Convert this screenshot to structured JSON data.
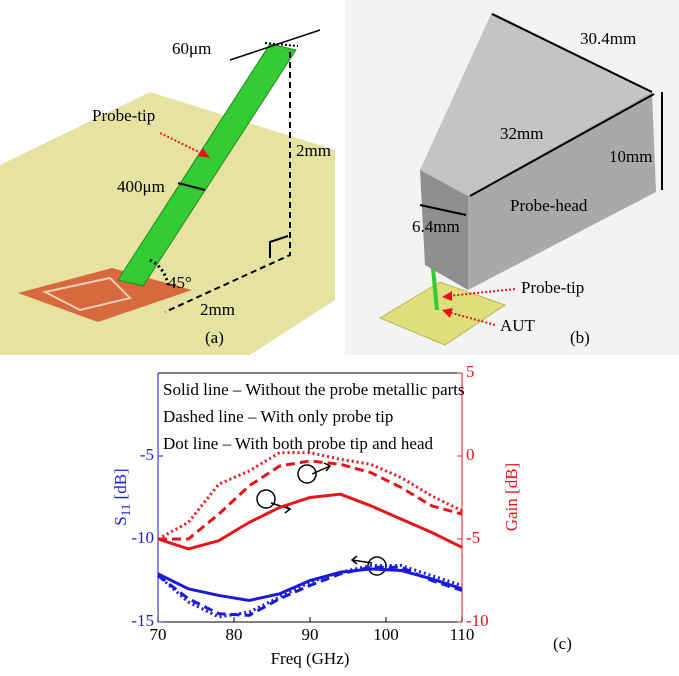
{
  "figure_a": {
    "labels": [
      "60μm",
      "Probe-tip",
      "2mm",
      "400μm",
      "45°",
      "2mm"
    ],
    "panel": "(a)"
  },
  "figure_b": {
    "labels": [
      "30.4mm",
      "32mm",
      "10mm",
      "Probe-head",
      "6.4mm",
      "Probe-tip",
      "AUT"
    ],
    "panel": "(b)"
  },
  "chart_data": {
    "type": "line",
    "panel": "(c)",
    "annotations": [
      "Solid line – Without the probe metallic parts",
      "Dashed line – With only probe tip",
      "Dot line – With both probe tip and head"
    ],
    "xlabel": "Freq (GHz)",
    "ylabel": [
      "S",
      "11",
      " [dB]"
    ],
    "y2label": "Gain [dB]",
    "x": [
      70,
      74,
      78,
      82,
      86,
      90,
      94,
      98,
      102,
      106,
      110
    ],
    "xlim": [
      70,
      110
    ],
    "xticks": [
      70,
      80,
      90,
      100,
      110
    ],
    "ylim": [
      -15,
      0
    ],
    "yticks": [
      -15,
      -10,
      -5
    ],
    "y2lim": [
      -10,
      5
    ],
    "y2ticks": [
      -10,
      -5,
      0,
      5
    ],
    "series": [
      {
        "color": "#e8141b",
        "style": "solid",
        "axis": "y2",
        "values": [
          -5.0,
          -5.6,
          -5.1,
          -4.0,
          -3.1,
          -2.5,
          -2.3,
          -3.0,
          -3.8,
          -4.6,
          -5.5
        ]
      },
      {
        "color": "#e8141b",
        "style": "dashed",
        "axis": "y2",
        "values": [
          -5.0,
          -5.0,
          -3.5,
          -1.8,
          -0.6,
          -0.3,
          -0.5,
          -1.0,
          -1.9,
          -3.0,
          -3.5
        ]
      },
      {
        "color": "#e8141b",
        "style": "dotted",
        "axis": "y2",
        "values": [
          -5.0,
          -4.0,
          -1.7,
          -0.9,
          0.2,
          0.2,
          -0.2,
          -0.5,
          -1.3,
          -2.4,
          -3.3
        ]
      },
      {
        "color": "#1a1adb",
        "style": "solid",
        "values": [
          -12.1,
          -13.0,
          -13.4,
          -13.7,
          -13.3,
          -12.5,
          -12.0,
          -11.8,
          -11.9,
          -12.4,
          -13.0
        ]
      },
      {
        "color": "#1a1adb",
        "style": "dashed",
        "values": [
          -12.2,
          -13.6,
          -14.5,
          -14.6,
          -13.6,
          -12.8,
          -12.1,
          -11.7,
          -11.7,
          -12.5,
          -13.1
        ]
      },
      {
        "color": "#1a1adb",
        "style": "dotted",
        "values": [
          -12.2,
          -13.8,
          -14.7,
          -14.4,
          -13.5,
          -12.6,
          -12.0,
          -11.6,
          -11.6,
          -12.2,
          -12.8
        ]
      }
    ]
  }
}
